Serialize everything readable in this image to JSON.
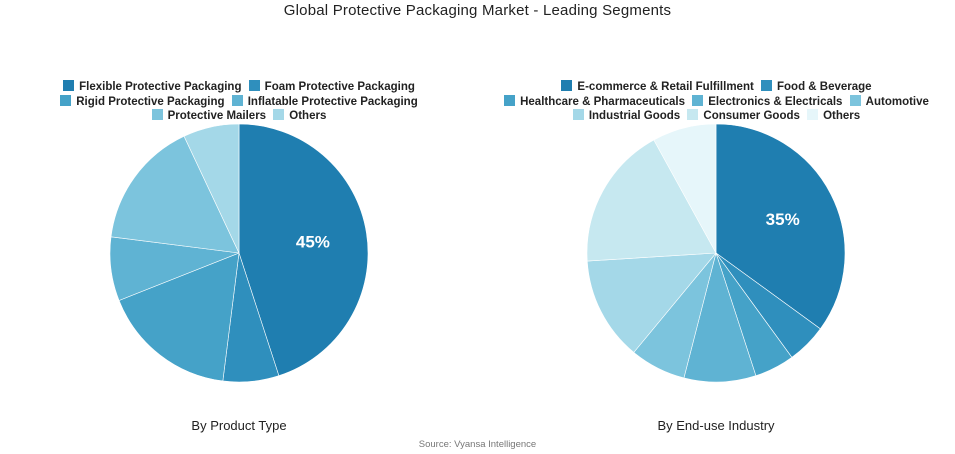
{
  "title": "Global Protective Packaging Market - Leading Segments",
  "source": "Source: Vyansa Intelligence",
  "chart_data": [
    {
      "type": "pie",
      "caption": "By Product Type",
      "legend_placement": "top",
      "categories": [
        "Flexible Protective Packaging",
        "Foam Protective Packaging",
        "Rigid Protective Packaging",
        "Inflatable Protective Packaging",
        "Protective Mailers",
        "Others"
      ],
      "values": [
        45,
        7,
        17,
        8,
        16,
        7
      ],
      "colors": [
        "#1f7eb0",
        "#2f8fbd",
        "#45a2c8",
        "#5fb3d3",
        "#7cc4dd",
        "#a4d8e8"
      ],
      "labels": [
        "45%",
        "",
        "",
        "",
        "",
        ""
      ]
    },
    {
      "type": "pie",
      "caption": "By End-use Industry",
      "legend_placement": "top",
      "categories": [
        "E-commerce & Retail Fulfillment",
        "Food & Beverage",
        "Healthcare & Pharmaceuticals",
        "Electronics & Electricals",
        "Automotive",
        "Industrial Goods",
        "Consumer Goods",
        "Others"
      ],
      "values": [
        35,
        5,
        5,
        9,
        7,
        13,
        18,
        8
      ],
      "colors": [
        "#1f7eb0",
        "#2f8fbd",
        "#45a2c8",
        "#5fb3d3",
        "#7cc4dd",
        "#a4d8e8",
        "#c6e8f0",
        "#e6f6fa"
      ],
      "labels": [
        "35%",
        "",
        "",
        "",
        "",
        "",
        "",
        ""
      ]
    }
  ]
}
